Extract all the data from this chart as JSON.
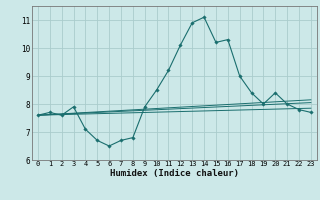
{
  "title": "",
  "xlabel": "Humidex (Indice chaleur)",
  "ylabel": "",
  "bg_color": "#cce8e8",
  "grid_color": "#aacccc",
  "line_color": "#1a6e6e",
  "xlim": [
    -0.5,
    23.5
  ],
  "ylim": [
    6,
    11.5
  ],
  "yticks": [
    6,
    7,
    8,
    9,
    10,
    11
  ],
  "xticks": [
    0,
    1,
    2,
    3,
    4,
    5,
    6,
    7,
    8,
    9,
    10,
    11,
    12,
    13,
    14,
    15,
    16,
    17,
    18,
    19,
    20,
    21,
    22,
    23
  ],
  "series": {
    "main": {
      "x": [
        0,
        1,
        2,
        3,
        4,
        5,
        6,
        7,
        8,
        9,
        10,
        11,
        12,
        13,
        14,
        15,
        16,
        17,
        18,
        19,
        20,
        21,
        22,
        23
      ],
      "y": [
        7.6,
        7.7,
        7.6,
        7.9,
        7.1,
        6.7,
        6.5,
        6.7,
        6.8,
        7.9,
        8.5,
        9.2,
        10.1,
        10.9,
        11.1,
        10.2,
        10.3,
        9.0,
        8.4,
        8.0,
        8.4,
        8.0,
        7.8,
        7.7
      ]
    },
    "line1": {
      "x": [
        0,
        23
      ],
      "y": [
        7.6,
        8.15
      ]
    },
    "line2": {
      "x": [
        0,
        23
      ],
      "y": [
        7.6,
        8.05
      ]
    },
    "line3": {
      "x": [
        0,
        23
      ],
      "y": [
        7.6,
        7.85
      ]
    }
  }
}
